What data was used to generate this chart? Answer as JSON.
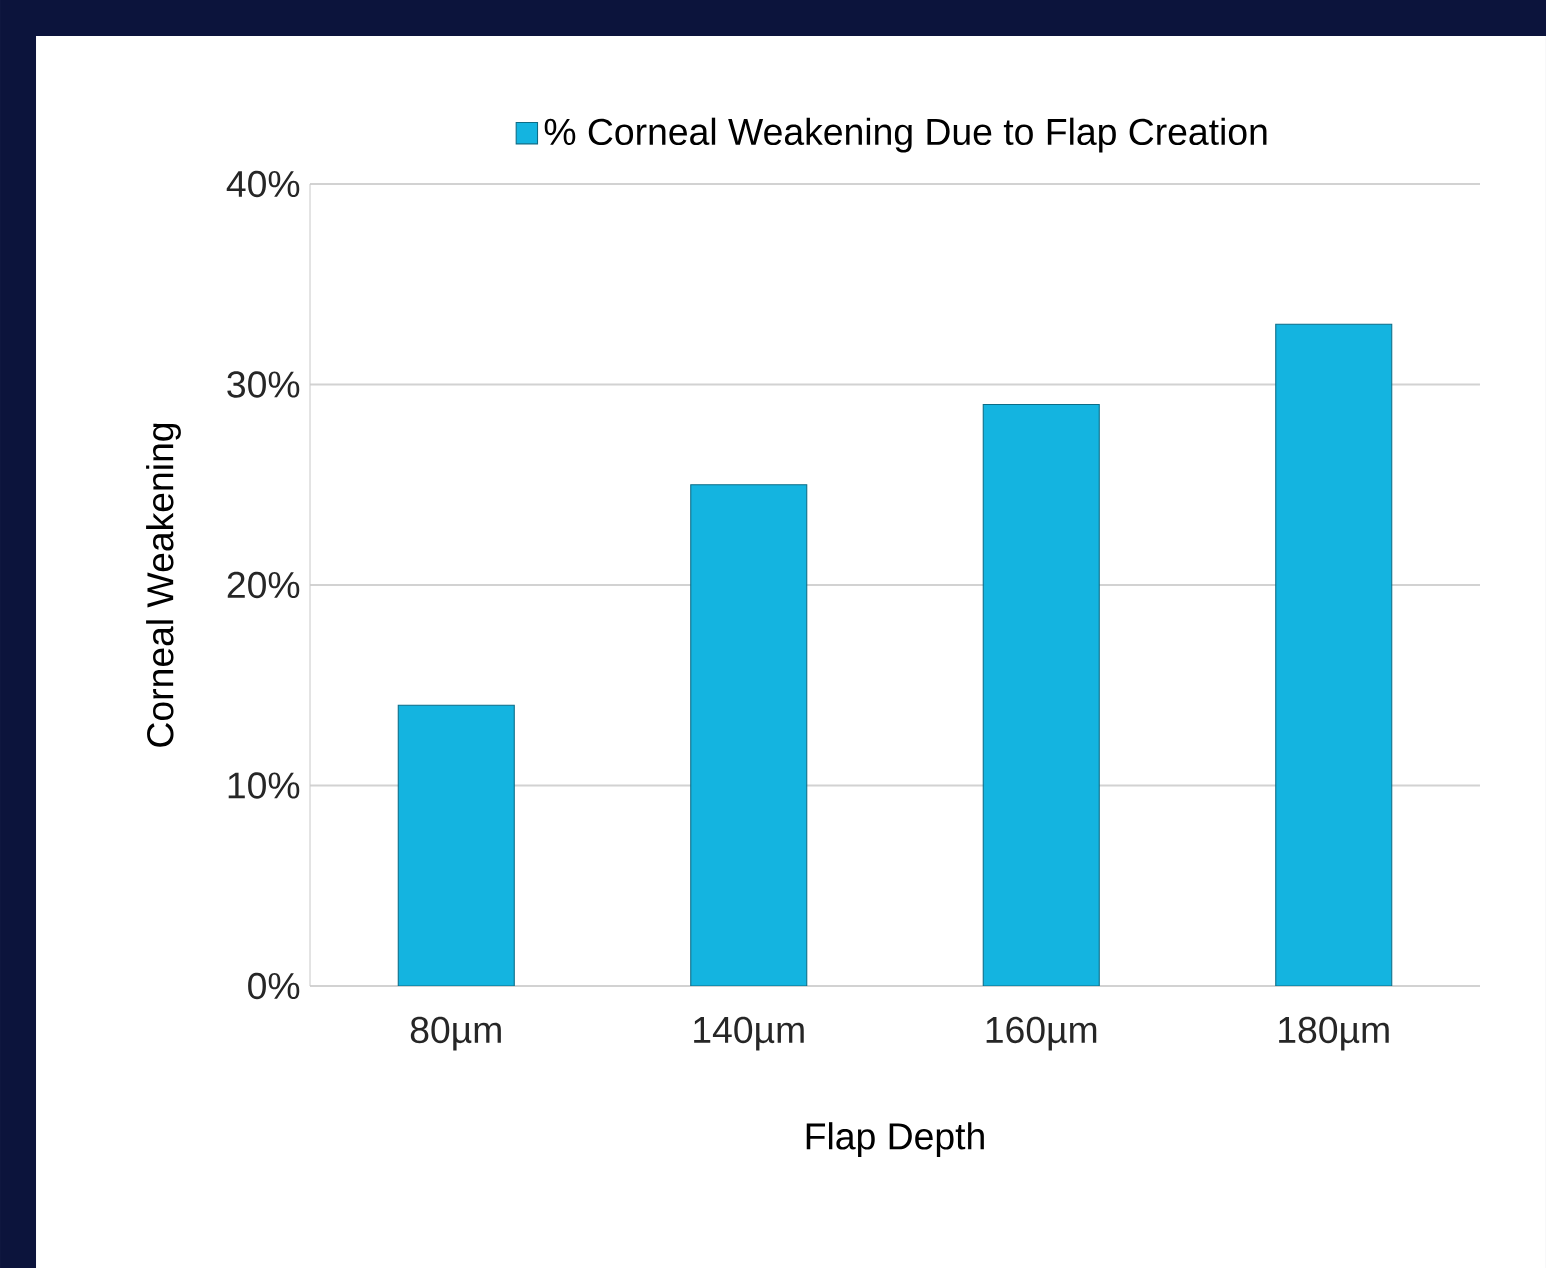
{
  "chart_data": {
    "type": "bar",
    "xlabel": "Flap Depth",
    "ylabel": "Corneal Weakening",
    "categories": [
      "80µm",
      "140µm",
      "160µm",
      "180µm"
    ],
    "series": [
      {
        "name": "% Corneal Weakening Due to Flap Creation",
        "color": "#14b4e0",
        "values": [
          14,
          25,
          29,
          33
        ]
      }
    ],
    "ylim": [
      0,
      40
    ],
    "yticks": [
      {
        "value": 0,
        "label": "0%"
      },
      {
        "value": 10,
        "label": "10%"
      },
      {
        "value": 20,
        "label": "20%"
      },
      {
        "value": 30,
        "label": "30%"
      },
      {
        "value": 40,
        "label": "40%"
      }
    ],
    "grid": "y",
    "legend": "top"
  }
}
